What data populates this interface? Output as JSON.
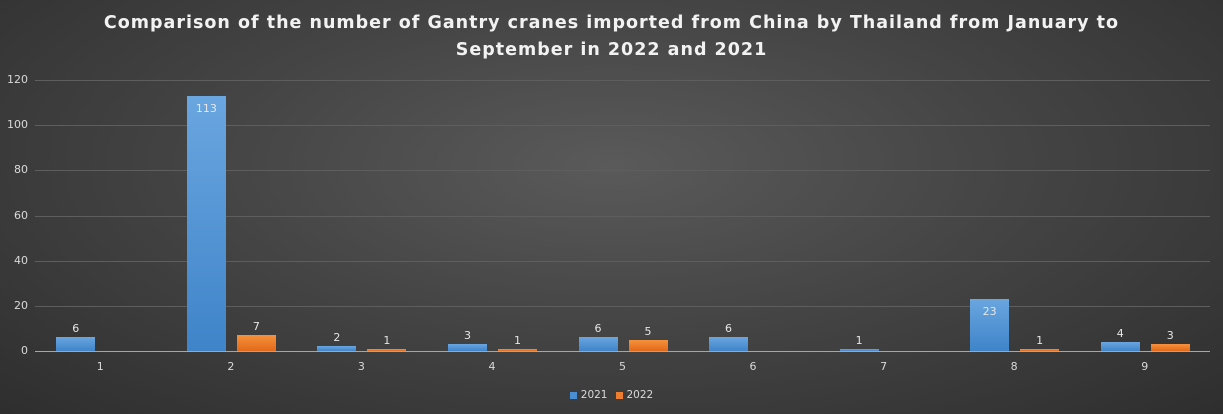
{
  "chart_data": {
    "type": "bar",
    "title": "Comparison of the number of Gantry cranes imported from China by Thailand from January to September in 2022 and 2021",
    "title_lines": [
      "Comparison of the number of Gantry cranes imported from China by Thailand from January to",
      "September in 2022 and 2021"
    ],
    "xlabel": "",
    "ylabel": "",
    "categories": [
      "1",
      "2",
      "3",
      "4",
      "5",
      "6",
      "7",
      "8",
      "9"
    ],
    "series": [
      {
        "name": "2021",
        "color": "#4a8fd4",
        "values": [
          6,
          113,
          2,
          3,
          6,
          6,
          1,
          23,
          4
        ]
      },
      {
        "name": "2022",
        "color": "#ed7d31",
        "values": [
          null,
          7,
          1,
          1,
          5,
          null,
          null,
          1,
          3
        ]
      }
    ],
    "ylim": [
      0,
      120
    ],
    "yticks": [
      0,
      20,
      40,
      60,
      80,
      100,
      120
    ],
    "grid": true,
    "legend_position": "bottom",
    "data_labels": true
  }
}
